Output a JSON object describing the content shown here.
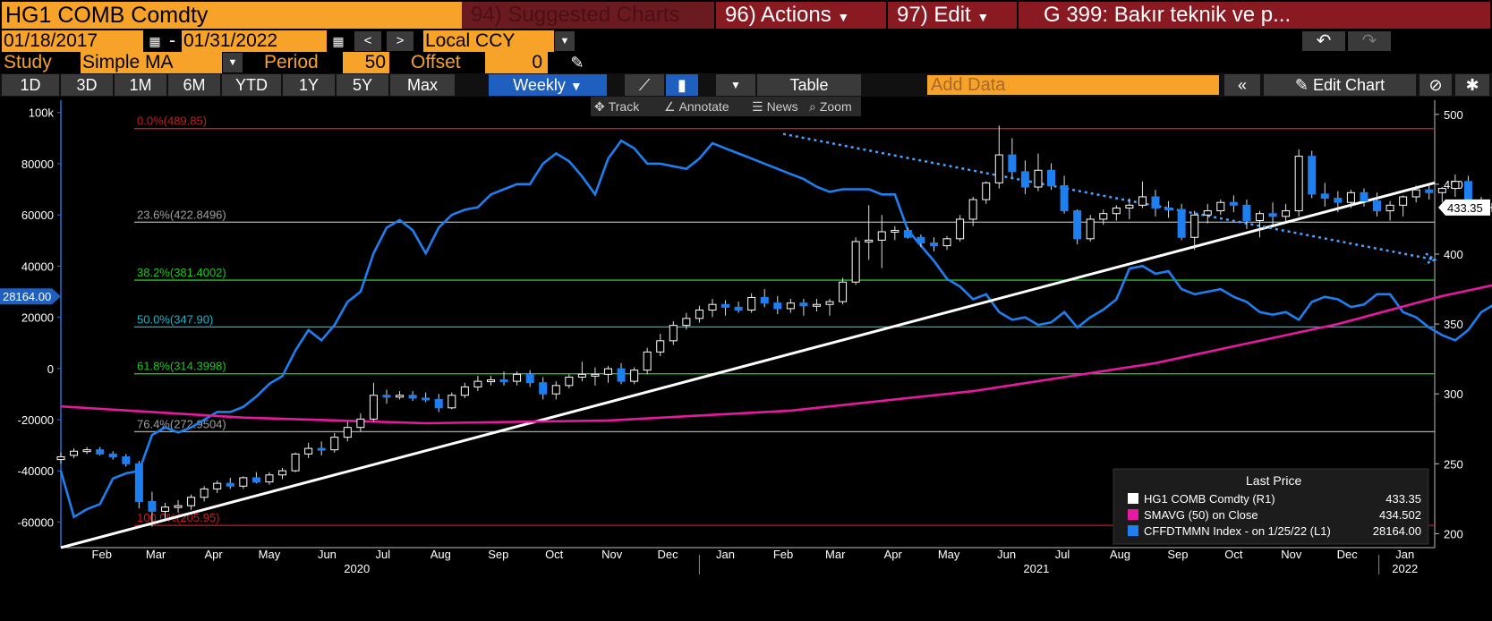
{
  "header": {
    "ticker": "HG1 COMB Comdty",
    "suggested": {
      "num": "94)",
      "label": "Suggested Charts"
    },
    "actions": {
      "num": "96)",
      "label": "Actions"
    },
    "edit": {
      "num": "97)",
      "label": "Edit"
    },
    "title": "G 399: Bakır teknik ve p..."
  },
  "range": {
    "start": "01/18/2017",
    "sep": "-",
    "end": "01/31/2022",
    "currency": "Local CCY",
    "prev": "<",
    "next": ">",
    "undo": "↶",
    "redo": "↷"
  },
  "study": {
    "label": "Study",
    "value": "Simple MA",
    "period_label": "Period",
    "period": "50",
    "offset_label": "Offset",
    "offset": "0"
  },
  "periods": [
    "1D",
    "3D",
    "1M",
    "6M",
    "YTD",
    "1Y",
    "5Y",
    "Max"
  ],
  "frequency": "Weekly",
  "table_label": "Table",
  "add_data_placeholder": "Add Data",
  "edit_chart_label": "Edit Chart",
  "chart_tools": [
    "Track",
    "Annotate",
    "News",
    "Zoom"
  ],
  "colors": {
    "accent": "#f7a229",
    "price_up": "#ffffff",
    "price_down": "#1e7ff0",
    "sma": "#e619a0",
    "cftc": "#1e7ff0",
    "fib_red": "#c81e1e",
    "fib_green": "#1ec81e",
    "fib_cyan": "#19b4c8",
    "fib_gray": "#a0a0a0"
  },
  "chart_data": {
    "type": "line",
    "x_range": [
      "2020-01-24",
      "2022-01-31"
    ],
    "right_axis": {
      "ticks": [
        200,
        250,
        300,
        350,
        400,
        450,
        500
      ],
      "range": [
        190,
        505
      ]
    },
    "left_axis": {
      "ticks": [
        -60000,
        -40000,
        -20000,
        0,
        20000,
        40000,
        60000,
        80000,
        100000
      ],
      "tick_labels": [
        "-60000",
        "-40000",
        "-20000",
        "0",
        "20000",
        "40000",
        "60000",
        "80000",
        "100k"
      ],
      "range": [
        -70000,
        102000
      ]
    },
    "x_ticks": [
      {
        "date": "2020-02-15",
        "label": "Feb"
      },
      {
        "date": "2020-03-15",
        "label": "Mar"
      },
      {
        "date": "2020-04-15",
        "label": "Apr"
      },
      {
        "date": "2020-05-15",
        "label": "May"
      },
      {
        "date": "2020-06-15",
        "label": "Jun"
      },
      {
        "date": "2020-07-15",
        "label": "Jul"
      },
      {
        "date": "2020-08-15",
        "label": "Aug"
      },
      {
        "date": "2020-09-15",
        "label": "Sep"
      },
      {
        "date": "2020-10-15",
        "label": "Oct"
      },
      {
        "date": "2020-11-15",
        "label": "Nov"
      },
      {
        "date": "2020-12-15",
        "label": "Dec"
      },
      {
        "date": "2021-01-15",
        "label": "Jan"
      },
      {
        "date": "2021-02-15",
        "label": "Feb"
      },
      {
        "date": "2021-03-15",
        "label": "Mar"
      },
      {
        "date": "2021-04-15",
        "label": "Apr"
      },
      {
        "date": "2021-05-15",
        "label": "May"
      },
      {
        "date": "2021-06-15",
        "label": "Jun"
      },
      {
        "date": "2021-07-15",
        "label": "Jul"
      },
      {
        "date": "2021-08-15",
        "label": "Aug"
      },
      {
        "date": "2021-09-15",
        "label": "Sep"
      },
      {
        "date": "2021-10-15",
        "label": "Oct"
      },
      {
        "date": "2021-11-15",
        "label": "Nov"
      },
      {
        "date": "2021-12-15",
        "label": "Dec"
      },
      {
        "date": "2022-01-15",
        "label": "Jan"
      }
    ],
    "year_labels": [
      {
        "date": "2020-07-01",
        "label": "2020"
      },
      {
        "date": "2021-07-01",
        "label": "2021"
      },
      {
        "date": "2022-01-15",
        "label": "2022"
      }
    ],
    "year_dividers": [
      "2021-01-01",
      "2022-01-01"
    ],
    "fib_levels": [
      {
        "label": "0.0%(489.85)",
        "value": 489.85,
        "color": "red"
      },
      {
        "label": "23.6%(422.8496)",
        "value": 422.8496,
        "color": "gray"
      },
      {
        "label": "38.2%(381.4002)",
        "value": 381.4002,
        "color": "green"
      },
      {
        "label": "50.0%(347.90)",
        "value": 347.9,
        "color": "cyan"
      },
      {
        "label": "61.8%(314.3998)",
        "value": 314.3998,
        "color": "green"
      },
      {
        "label": "76.4%(272.9504)",
        "value": 272.9504,
        "color": "gray"
      },
      {
        "label": "100.0%(205.95)",
        "value": 205.95,
        "color": "red"
      }
    ],
    "trendline": {
      "start": [
        "2020-01-24",
        190
      ],
      "end": [
        "2022-01-31",
        451
      ]
    },
    "dotted_trend": {
      "start": [
        "2021-02-15",
        486
      ],
      "end": [
        "2022-01-31",
        396
      ]
    },
    "candles_start": "2020-01-24",
    "candles": [
      [
        253,
        258,
        250,
        255
      ],
      [
        256,
        261,
        254,
        259
      ],
      [
        259,
        262,
        257,
        260
      ],
      [
        260,
        262,
        256,
        257
      ],
      [
        257,
        259,
        253,
        255
      ],
      [
        255,
        257,
        248,
        250
      ],
      [
        250,
        252,
        218,
        223
      ],
      [
        223,
        230,
        205,
        216
      ],
      [
        216,
        222,
        211,
        219
      ],
      [
        219,
        224,
        215,
        220
      ],
      [
        220,
        228,
        217,
        226
      ],
      [
        226,
        234,
        223,
        232
      ],
      [
        232,
        238,
        229,
        236
      ],
      [
        236,
        240,
        232,
        234
      ],
      [
        234,
        241,
        232,
        240
      ],
      [
        240,
        244,
        236,
        237
      ],
      [
        237,
        244,
        235,
        242
      ],
      [
        242,
        247,
        239,
        245
      ],
      [
        245,
        258,
        244,
        257
      ],
      [
        257,
        265,
        254,
        261
      ],
      [
        261,
        266,
        256,
        260
      ],
      [
        260,
        272,
        258,
        269
      ],
      [
        269,
        280,
        266,
        276
      ],
      [
        276,
        286,
        273,
        282
      ],
      [
        282,
        308,
        280,
        299
      ],
      [
        299,
        303,
        293,
        298
      ],
      [
        298,
        302,
        296,
        299
      ],
      [
        299,
        302,
        295,
        297
      ],
      [
        297,
        301,
        294,
        296
      ],
      [
        296,
        300,
        287,
        290
      ],
      [
        290,
        301,
        289,
        299
      ],
      [
        299,
        308,
        297,
        305
      ],
      [
        305,
        313,
        302,
        309
      ],
      [
        309,
        313,
        306,
        310
      ],
      [
        310,
        316,
        306,
        309
      ],
      [
        309,
        316,
        306,
        314
      ],
      [
        314,
        317,
        305,
        308
      ],
      [
        308,
        312,
        296,
        300
      ],
      [
        300,
        309,
        296,
        306
      ],
      [
        306,
        314,
        304,
        312
      ],
      [
        312,
        323,
        309,
        314
      ],
      [
        314,
        319,
        306,
        314
      ],
      [
        314,
        320,
        308,
        318
      ],
      [
        318,
        322,
        307,
        309
      ],
      [
        309,
        319,
        307,
        317
      ],
      [
        317,
        333,
        314,
        330
      ],
      [
        330,
        343,
        327,
        338
      ],
      [
        338,
        352,
        335,
        349
      ],
      [
        349,
        358,
        346,
        354
      ],
      [
        354,
        363,
        351,
        360
      ],
      [
        360,
        368,
        355,
        364
      ],
      [
        364,
        367,
        356,
        362
      ],
      [
        362,
        366,
        358,
        360
      ],
      [
        360,
        372,
        358,
        369
      ],
      [
        369,
        375,
        362,
        365
      ],
      [
        365,
        370,
        357,
        361
      ],
      [
        361,
        368,
        358,
        365
      ],
      [
        365,
        368,
        356,
        363
      ],
      [
        363,
        368,
        359,
        364
      ],
      [
        364,
        368,
        356,
        366
      ],
      [
        366,
        383,
        364,
        380
      ],
      [
        380,
        412,
        378,
        409
      ],
      [
        409,
        435,
        396,
        410
      ],
      [
        410,
        428,
        390,
        416
      ],
      [
        416,
        420,
        410,
        417
      ],
      [
        417,
        419,
        411,
        412
      ],
      [
        412,
        414,
        405,
        408
      ],
      [
        408,
        412,
        402,
        406
      ],
      [
        406,
        413,
        403,
        411
      ],
      [
        411,
        428,
        409,
        425
      ],
      [
        425,
        441,
        420,
        439
      ],
      [
        439,
        452,
        436,
        451
      ],
      [
        451,
        492,
        447,
        471
      ],
      [
        471,
        483,
        455,
        459
      ],
      [
        459,
        467,
        443,
        448
      ],
      [
        448,
        472,
        445,
        460
      ],
      [
        460,
        465,
        446,
        449
      ],
      [
        449,
        456,
        429,
        431
      ],
      [
        431,
        432,
        407,
        411
      ],
      [
        411,
        428,
        409,
        425
      ],
      [
        425,
        432,
        421,
        429
      ],
      [
        429,
        435,
        424,
        433
      ],
      [
        433,
        440,
        425,
        435
      ],
      [
        435,
        452,
        433,
        441
      ],
      [
        441,
        446,
        427,
        433
      ],
      [
        433,
        438,
        426,
        432
      ],
      [
        432,
        436,
        410,
        412
      ],
      [
        412,
        431,
        403,
        428
      ],
      [
        428,
        436,
        422,
        431
      ],
      [
        431,
        439,
        428,
        437
      ],
      [
        437,
        442,
        430,
        435
      ],
      [
        435,
        439,
        418,
        424
      ],
      [
        424,
        431,
        412,
        429
      ],
      [
        429,
        437,
        421,
        427
      ],
      [
        427,
        436,
        423,
        431
      ],
      [
        431,
        475,
        427,
        470
      ],
      [
        470,
        474,
        440,
        443
      ],
      [
        443,
        451,
        434,
        440
      ],
      [
        440,
        445,
        430,
        437
      ],
      [
        437,
        446,
        433,
        444
      ],
      [
        444,
        447,
        434,
        438
      ],
      [
        438,
        444,
        427,
        431
      ],
      [
        431,
        438,
        424,
        435
      ],
      [
        435,
        442,
        427,
        441
      ],
      [
        441,
        449,
        437,
        446
      ],
      [
        446,
        450,
        439,
        444
      ],
      [
        444,
        448,
        437,
        447
      ],
      [
        447,
        457,
        441,
        452
      ],
      [
        452,
        456,
        433,
        438
      ],
      [
        438,
        441,
        433,
        436
      ]
    ],
    "sma50": [
      [
        0,
        291
      ],
      [
        14,
        283
      ],
      [
        28,
        279
      ],
      [
        42,
        281
      ],
      [
        56,
        288
      ],
      [
        70,
        302
      ],
      [
        84,
        322
      ],
      [
        98,
        350
      ],
      [
        106,
        370
      ],
      [
        112,
        382
      ],
      [
        125,
        403
      ],
      [
        140,
        426
      ],
      [
        154,
        433
      ]
    ],
    "cftc_index": [
      -40000,
      -58000,
      -55000,
      -53000,
      -43000,
      -41000,
      -40000,
      -26000,
      -23000,
      -25000,
      -23000,
      -20000,
      -17000,
      -17000,
      -15000,
      -11000,
      -6000,
      -3000,
      7000,
      15000,
      11000,
      17000,
      26000,
      30000,
      45000,
      55000,
      58000,
      54000,
      45000,
      55000,
      60000,
      62000,
      63000,
      68000,
      70000,
      72000,
      72000,
      80000,
      84000,
      81000,
      75000,
      68000,
      82000,
      89000,
      86000,
      80000,
      80000,
      79000,
      78000,
      82000,
      88000,
      86000,
      84000,
      82000,
      80000,
      78000,
      76000,
      74000,
      71000,
      69000,
      70000,
      70000,
      70000,
      68000,
      68000,
      54000,
      48000,
      42000,
      35000,
      32000,
      27000,
      29000,
      22000,
      19000,
      20000,
      17000,
      18000,
      22000,
      16000,
      20000,
      23000,
      27000,
      39000,
      40000,
      37000,
      38000,
      31000,
      29000,
      30000,
      31000,
      28000,
      26000,
      22000,
      21000,
      22000,
      19000,
      26000,
      28000,
      27000,
      24000,
      25000,
      29000,
      29000,
      22000,
      20000,
      16000,
      13000,
      11000,
      15000,
      22000,
      25000,
      26000,
      22000,
      24000,
      28164
    ],
    "last_price": {
      "R1": 433.35,
      "L1": 28164.0
    },
    "legend": {
      "header": "Last Price",
      "rows": [
        {
          "label": "HG1 COMB Comdty  (R1)",
          "value": "433.35",
          "color": "#ffffff"
        },
        {
          "label": "SMAVG (50)  on Close",
          "value": "434.502",
          "color": "#e619a0"
        },
        {
          "label": "CFFDTMMN Index -  on 1/25/22  (L1)",
          "value": "28164.00",
          "color": "#1e7ff0"
        }
      ]
    },
    "price_tag_right": "433.35",
    "price_tag_left": "28164.00"
  }
}
